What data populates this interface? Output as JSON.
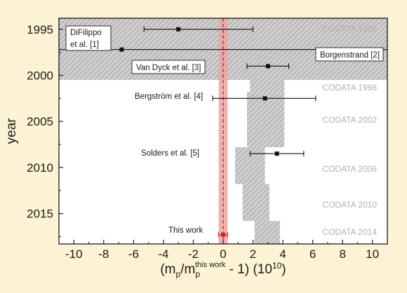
{
  "chart_data": {
    "type": "scatter",
    "xlabel_prefix": "(m",
    "xlabel_sub1": "p",
    "xlabel_mid": "/m",
    "xlabel_sub2": "p",
    "xlabel_sup": "this work",
    "xlabel_suffix": " - 1) (10",
    "xlabel_exp": "10",
    "xlabel_end": ")",
    "ylabel": "year",
    "xlim": [
      -11,
      11
    ],
    "ylim": [
      2018.3,
      1993.8
    ],
    "y_reversed": true,
    "xticks": [
      -10,
      -8,
      -6,
      -4,
      -2,
      0,
      2,
      4,
      6,
      8,
      10
    ],
    "yticks": [
      1995,
      2000,
      2005,
      2010,
      2015
    ],
    "measurements": [
      {
        "label": "DiFilippo",
        "label2": "et al. [1]",
        "year": 1995.0,
        "x": -3.0,
        "xerr_low": -5.3,
        "xerr_high": 2.0,
        "color": "#111111",
        "boxed": true
      },
      {
        "label": "Borgenstrand [2]",
        "year": 1997.2,
        "x": -6.8,
        "xerr_low": -11.0,
        "xerr_high": 11.0,
        "color": "#111111",
        "boxed": true
      },
      {
        "label": "Van Dyck et al. [3]",
        "year": 1999.0,
        "x": 3.0,
        "xerr_low": 1.6,
        "xerr_high": 4.4,
        "color": "#111111",
        "boxed": true
      },
      {
        "label": "Bergström et al. [4]",
        "year": 2002.5,
        "x": 2.8,
        "xerr_low": -0.7,
        "xerr_high": 6.2,
        "color": "#111111",
        "boxed": false
      },
      {
        "label": "Solders et al. [5]",
        "year": 2008.5,
        "x": 3.6,
        "xerr_low": 1.8,
        "xerr_high": 5.4,
        "color": "#111111",
        "boxed": false
      },
      {
        "label": "This work",
        "year": 2017.3,
        "x": 0.0,
        "xerr_low": -0.3,
        "xerr_high": 0.3,
        "color": "#dd1c1c",
        "boxed": false
      }
    ],
    "codata_bands": [
      {
        "label": "CODATA 1986",
        "year_start": 1993.8,
        "year_end": 2000.5,
        "x_low": -11.0,
        "x_high": 11.0
      },
      {
        "label": "CODATA 1998",
        "year_start": 2000.5,
        "year_end": 2001.8,
        "x_low": 1.8,
        "x_high": 4.1
      },
      {
        "label": "CODATA 2002",
        "year_start": 2001.8,
        "year_end": 2007.8,
        "x_low": 1.6,
        "x_high": 4.1
      },
      {
        "label": "CODATA 2006",
        "year_start": 2007.8,
        "year_end": 2011.8,
        "x_low": 0.8,
        "x_high": 2.8
      },
      {
        "label": "CODATA 2010",
        "year_start": 2011.8,
        "year_end": 2015.8,
        "x_low": 1.3,
        "x_high": 3.1
      },
      {
        "label": "CODATA 2014",
        "year_start": 2015.8,
        "year_end": 2018.3,
        "x_low": 2.1,
        "x_high": 3.8
      }
    ],
    "this_work_band": {
      "x_low": -0.3,
      "x_high": 0.3,
      "color": "#f5a0a0"
    },
    "colors": {
      "band_fill": "#c8c8c8",
      "hatch": "#8a8a8a",
      "codata_text": "#b0b0b0",
      "this_work": "#dd1c1c"
    }
  }
}
